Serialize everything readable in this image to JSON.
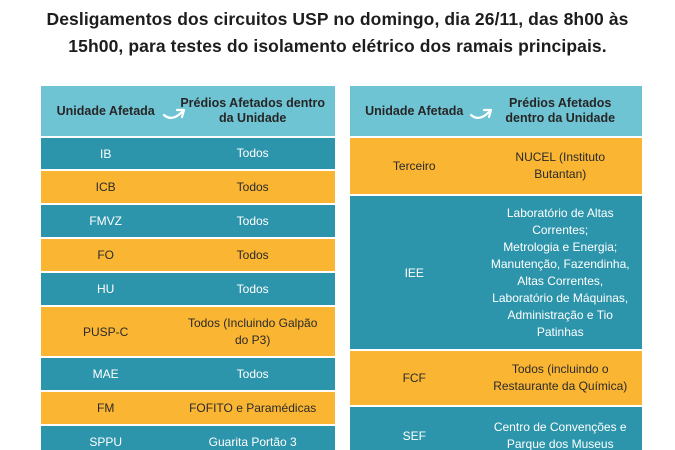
{
  "title": {
    "line1": "Desligamentos dos circuitos USP no domingo, dia 26/11, das 8h00 às",
    "line2": "15h00, para testes do isolamento elétrico dos ramais principais."
  },
  "left_table": {
    "header": {
      "col1": "Unidade Afetada",
      "col2_l1": "Prédios Afetados dentro",
      "col2_l2": "da Unidade"
    },
    "rows": [
      {
        "unit": "IB",
        "buildings": "Todos",
        "color": "teal"
      },
      {
        "unit": "ICB",
        "buildings": "Todos",
        "color": "orange"
      },
      {
        "unit": "FMVZ",
        "buildings": "Todos",
        "color": "teal"
      },
      {
        "unit": "FO",
        "buildings": "Todos",
        "color": "orange"
      },
      {
        "unit": "HU",
        "buildings": "Todos",
        "color": "teal"
      },
      {
        "unit": "PUSP-C",
        "buildings_l1": "Todos (Incluindo Galpão",
        "buildings_l2": "do P3)",
        "color": "orange"
      },
      {
        "unit": "MAE",
        "buildings": "Todos",
        "color": "teal"
      },
      {
        "unit": "FM",
        "buildings": "FOFITO e Paramédicas",
        "color": "orange"
      },
      {
        "unit": "SPPU",
        "buildings": "Guarita Portão 3",
        "color": "teal"
      }
    ]
  },
  "right_table": {
    "header": {
      "col1": "Unidade Afetada",
      "col2_l1": "Prédios Afetados",
      "col2_l2": "dentro da Unidade"
    },
    "rows": [
      {
        "unit": "Terceiro",
        "lines": [
          "NUCEL (Instituto",
          "Butantan)"
        ],
        "color": "orange"
      },
      {
        "unit": "IEE",
        "lines": [
          "Laboratório de Altas",
          "Correntes;",
          "Metrologia e Energia;",
          "Manutenção, Fazendinha,",
          "Altas Correntes,",
          "Laboratório de Máquinas,",
          "Administração e Tio",
          "Patinhas"
        ],
        "color": "teal"
      },
      {
        "unit": "FCF",
        "lines": [
          "Todos (incluindo o",
          "Restaurante da Química)"
        ],
        "color": "orange"
      },
      {
        "unit": "SEF",
        "lines": [
          "Centro de Convenções e",
          "Parque dos Museus"
        ],
        "color": "teal"
      }
    ]
  },
  "colors": {
    "header": "#6fc4d4",
    "teal": "#2d95ab",
    "orange": "#fab533"
  },
  "icons": {
    "header_arrow": "curved-arrow-icon"
  }
}
